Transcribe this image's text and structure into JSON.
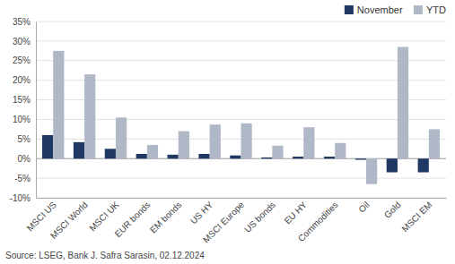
{
  "chart_data": {
    "type": "bar",
    "categories": [
      "MSCI US",
      "MSCI World",
      "MSCI UK",
      "EUR bonds",
      "EM bonds",
      "US HY",
      "MSCI Europe",
      "US bonds",
      "EU HY",
      "Commodities",
      "Oil",
      "Gold",
      "MSCI EM"
    ],
    "series": [
      {
        "name": "November",
        "color": "#1f3864",
        "values": [
          6.0,
          4.2,
          2.5,
          1.2,
          1.0,
          1.2,
          0.8,
          0.3,
          0.5,
          0.5,
          -0.3,
          -3.5,
          -3.5
        ]
      },
      {
        "name": "YTD",
        "color": "#b0b7c6",
        "values": [
          27.5,
          21.5,
          10.5,
          3.5,
          7.0,
          8.7,
          9.0,
          3.3,
          8.0,
          4.0,
          -6.5,
          28.5,
          7.5
        ]
      }
    ],
    "ylim": [
      -10,
      35
    ],
    "yticks": [
      {
        "value": -10,
        "label": "-10%"
      },
      {
        "value": -5,
        "label": "-5%"
      },
      {
        "value": 0,
        "label": "0%"
      },
      {
        "value": 5,
        "label": "5%"
      },
      {
        "value": 10,
        "label": "10%"
      },
      {
        "value": 15,
        "label": "15%"
      },
      {
        "value": 20,
        "label": "20%"
      },
      {
        "value": 25,
        "label": "25%"
      },
      {
        "value": 30,
        "label": "30%"
      },
      {
        "value": 35,
        "label": "35%"
      }
    ],
    "grid": true,
    "legend": "upper right",
    "annotations": [
      "Source: LSEG, Bank J. Safra Sarasin, 02.12.2024"
    ]
  }
}
